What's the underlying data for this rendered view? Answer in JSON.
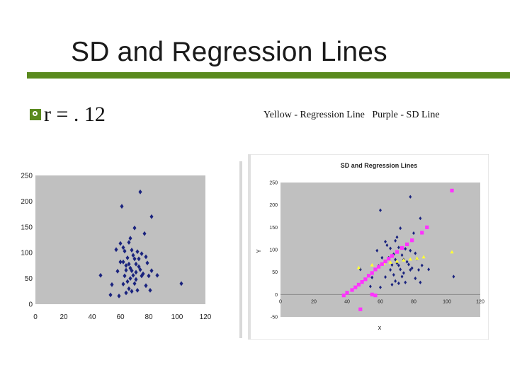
{
  "slide": {
    "title": "SD and Regression Lines",
    "bullet": "r = . 12",
    "caption": "Yellow - Regression Line   Purple - SD Line",
    "colors": {
      "accent": "#5a8a1e",
      "points": "#1a237e",
      "regression": "#ffff33",
      "sd": "#ff33ff",
      "plot_bg": "#c0c0c0"
    },
    "bullet_icon": "q-bullet-icon"
  },
  "chart_data": [
    {
      "type": "scatter",
      "title": "",
      "xlabel": "",
      "ylabel": "",
      "xlim": [
        0,
        120
      ],
      "ylim": [
        0,
        250
      ],
      "xticks": [
        0,
        20,
        40,
        60,
        80,
        100,
        120
      ],
      "yticks": [
        0,
        50,
        100,
        150,
        200,
        250
      ],
      "grid": false,
      "series": [
        {
          "marker": "diamond",
          "color": "#1a237e",
          "points": [
            [
              74,
              218
            ],
            [
              61,
              190
            ],
            [
              82,
              170
            ],
            [
              70,
              148
            ],
            [
              77,
              137
            ],
            [
              67,
              128
            ],
            [
              60,
              118
            ],
            [
              57,
              106
            ],
            [
              63,
              103
            ],
            [
              68,
              105
            ],
            [
              72,
              102
            ],
            [
              75,
              98
            ],
            [
              78,
              92
            ],
            [
              70,
              88
            ],
            [
              65,
              90
            ],
            [
              62,
              82
            ],
            [
              60,
              82
            ],
            [
              66,
              78
            ],
            [
              71,
              78
            ],
            [
              79,
              80
            ],
            [
              73,
              73
            ],
            [
              67,
              70
            ],
            [
              64,
              66
            ],
            [
              68,
              65
            ],
            [
              74,
              67
            ],
            [
              82,
              65
            ],
            [
              86,
              56
            ],
            [
              58,
              64
            ],
            [
              46,
              56
            ],
            [
              63,
              55
            ],
            [
              69,
              56
            ],
            [
              75,
              55
            ],
            [
              80,
              55
            ],
            [
              71,
              48
            ],
            [
              65,
              44
            ],
            [
              70,
              40
            ],
            [
              62,
              39
            ],
            [
              78,
              36
            ],
            [
              54,
              38
            ],
            [
              66,
              30
            ],
            [
              72,
              27
            ],
            [
              81,
              27
            ],
            [
              64,
              22
            ],
            [
              59,
              16
            ],
            [
              53,
              18
            ],
            [
              68,
              25
            ],
            [
              103,
              40
            ],
            [
              62,
              110
            ],
            [
              76,
              59
            ],
            [
              66,
              120
            ],
            [
              73,
              88
            ],
            [
              69,
              95
            ],
            [
              64,
              75
            ],
            [
              71,
              62
            ],
            [
              67,
              50
            ]
          ]
        }
      ]
    },
    {
      "type": "scatter",
      "title": "SD and Regression Lines",
      "xlabel": "x",
      "ylabel": "Y",
      "xlim": [
        0,
        120
      ],
      "ylim": [
        -50,
        250
      ],
      "xticks": [
        0,
        20,
        40,
        60,
        80,
        100,
        120
      ],
      "yticks": [
        -50,
        0,
        50,
        100,
        150,
        200,
        250
      ],
      "grid": false,
      "series": [
        {
          "marker": "diamond",
          "color": "#1a237e",
          "points": [
            [
              78,
              218
            ],
            [
              60,
              188
            ],
            [
              84,
              170
            ],
            [
              72,
              148
            ],
            [
              80,
              137
            ],
            [
              70,
              128
            ],
            [
              63,
              118
            ],
            [
              58,
              98
            ],
            [
              66,
              103
            ],
            [
              71,
              105
            ],
            [
              75,
              102
            ],
            [
              78,
              98
            ],
            [
              81,
              92
            ],
            [
              73,
              88
            ],
            [
              68,
              90
            ],
            [
              65,
              82
            ],
            [
              61,
              82
            ],
            [
              69,
              78
            ],
            [
              74,
              78
            ],
            [
              82,
              80
            ],
            [
              76,
              73
            ],
            [
              70,
              70
            ],
            [
              67,
              66
            ],
            [
              71,
              65
            ],
            [
              77,
              67
            ],
            [
              85,
              65
            ],
            [
              89,
              56
            ],
            [
              59,
              64
            ],
            [
              48,
              56
            ],
            [
              66,
              55
            ],
            [
              72,
              56
            ],
            [
              78,
              55
            ],
            [
              83,
              55
            ],
            [
              74,
              48
            ],
            [
              68,
              44
            ],
            [
              73,
              40
            ],
            [
              63,
              39
            ],
            [
              81,
              36
            ],
            [
              55,
              38
            ],
            [
              69,
              30
            ],
            [
              75,
              27
            ],
            [
              84,
              27
            ],
            [
              67,
              22
            ],
            [
              60,
              16
            ],
            [
              54,
              18
            ],
            [
              71,
              25
            ],
            [
              104,
              40
            ],
            [
              64,
              110
            ],
            [
              79,
              59
            ],
            [
              69,
              120
            ]
          ]
        },
        {
          "name": "Regression Line",
          "marker": "triangle",
          "color": "#ffff33",
          "points": [
            [
              47,
              60
            ],
            [
              55,
              66
            ],
            [
              62,
              69
            ],
            [
              66,
              72
            ],
            [
              70,
              74
            ],
            [
              74,
              77
            ],
            [
              78,
              79
            ],
            [
              82,
              81
            ],
            [
              86,
              84
            ],
            [
              103,
              95
            ]
          ]
        },
        {
          "name": "SD Line",
          "marker": "square",
          "color": "#ff33ff",
          "points": [
            [
              103,
              232
            ],
            [
              88,
              150
            ],
            [
              85,
              138
            ],
            [
              79,
              121
            ],
            [
              76,
              112
            ],
            [
              73,
              104
            ],
            [
              70,
              95
            ],
            [
              67,
              86
            ],
            [
              65,
              80
            ],
            [
              63,
              74
            ],
            [
              61,
              68
            ],
            [
              59,
              62
            ],
            [
              57,
              56
            ],
            [
              55,
              48
            ],
            [
              53,
              42
            ],
            [
              51,
              34
            ],
            [
              49,
              28
            ],
            [
              47,
              22
            ],
            [
              45,
              16
            ],
            [
              43,
              10
            ],
            [
              40,
              4
            ],
            [
              38,
              -2
            ],
            [
              57,
              -2
            ],
            [
              55,
              0
            ],
            [
              48,
              -33
            ]
          ]
        }
      ]
    }
  ]
}
